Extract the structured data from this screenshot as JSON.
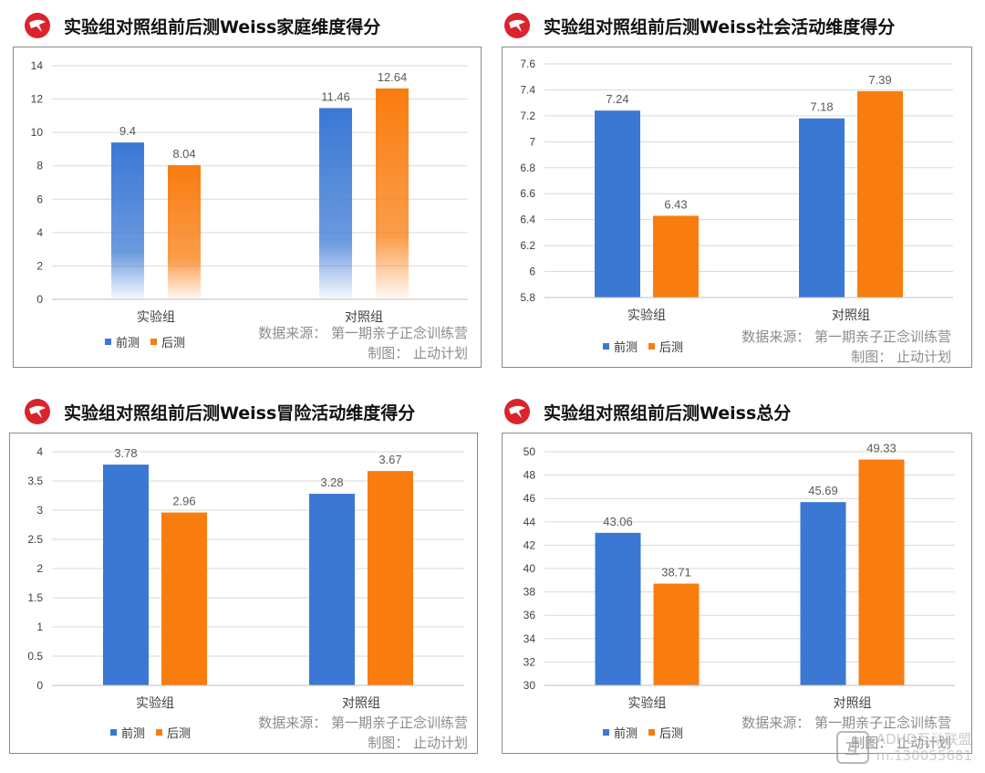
{
  "colors": {
    "pre": "#3a78d4",
    "post": "#f97c0f",
    "logo": "#d9232d"
  },
  "legend": {
    "pre": "前测",
    "post": "后测"
  },
  "source": {
    "line1": "数据来源： 第一期亲子正念训练营",
    "line2": "制图： 止动计划"
  },
  "watermark": {
    "line1": "ADHD互动联盟",
    "line2": "m.130055681"
  },
  "chart_data": [
    {
      "title": "实验组对照组前后测Weiss家庭维度得分",
      "type": "bar",
      "categories": [
        "实验组",
        "对照组"
      ],
      "series": [
        {
          "name": "前测",
          "values": [
            9.4,
            11.46
          ]
        },
        {
          "name": "后测",
          "values": [
            8.04,
            12.64
          ]
        }
      ],
      "ylim": [
        0,
        14
      ],
      "yticks": [
        "0",
        "2",
        "4",
        "6",
        "8",
        "10",
        "12",
        "14"
      ],
      "value_labels": [
        [
          "9.4",
          "11.46"
        ],
        [
          "8.04",
          "12.64"
        ]
      ],
      "gradient": true,
      "legend_position": "bottom-left"
    },
    {
      "title": "实验组对照组前后测Weiss社会活动维度得分",
      "type": "bar",
      "categories": [
        "实验组",
        "对照组"
      ],
      "series": [
        {
          "name": "前测",
          "values": [
            7.24,
            7.18
          ]
        },
        {
          "name": "后测",
          "values": [
            6.43,
            7.39
          ]
        }
      ],
      "ylim": [
        5.8,
        7.6
      ],
      "yticks": [
        "5.8",
        "6",
        "6.2",
        "6.4",
        "6.6",
        "6.8",
        "7",
        "7.2",
        "7.4",
        "7.6"
      ],
      "value_labels": [
        [
          "7.24",
          "7.18"
        ],
        [
          "6.43",
          "7.39"
        ]
      ],
      "gradient": false,
      "legend_position": "bottom-left"
    },
    {
      "title": "实验组对照组前后测Weiss冒险活动维度得分",
      "type": "bar",
      "categories": [
        "实验组",
        "对照组"
      ],
      "series": [
        {
          "name": "前测",
          "values": [
            3.78,
            3.28
          ]
        },
        {
          "name": "后测",
          "values": [
            2.96,
            3.67
          ]
        }
      ],
      "ylim": [
        0,
        4
      ],
      "yticks": [
        "0",
        "0.5",
        "1",
        "1.5",
        "2",
        "2.5",
        "3",
        "3.5",
        "4"
      ],
      "value_labels": [
        [
          "3.78",
          "3.28"
        ],
        [
          "2.96",
          "3.67"
        ]
      ],
      "gradient": false,
      "legend_position": "bottom-left"
    },
    {
      "title": "实验组对照组前后测Weiss总分",
      "type": "bar",
      "categories": [
        "实验组",
        "对照组"
      ],
      "series": [
        {
          "name": "前测",
          "values": [
            43.06,
            45.69
          ]
        },
        {
          "name": "后测",
          "values": [
            38.71,
            49.33
          ]
        }
      ],
      "ylim": [
        30,
        50
      ],
      "yticks": [
        "30",
        "32",
        "34",
        "36",
        "38",
        "40",
        "42",
        "44",
        "46",
        "48",
        "50"
      ],
      "value_labels": [
        [
          "43.06",
          "45.69"
        ],
        [
          "38.71",
          "49.33"
        ]
      ],
      "gradient": false,
      "legend_position": "bottom-left"
    }
  ]
}
